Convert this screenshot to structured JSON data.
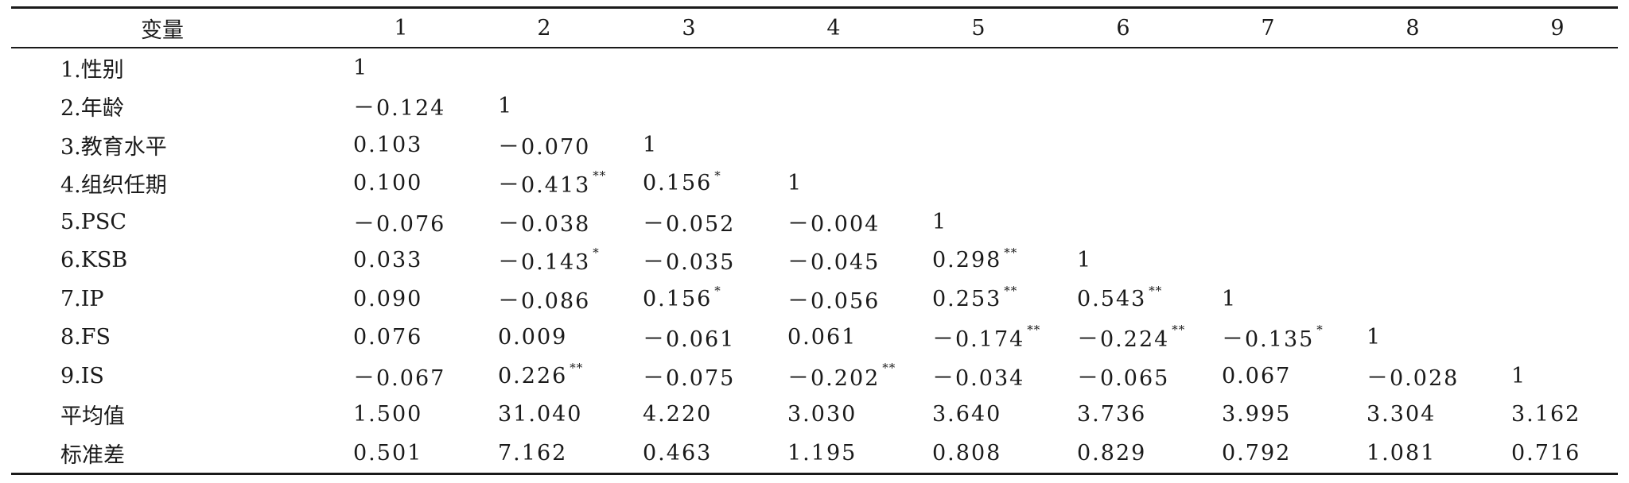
{
  "table": {
    "header": [
      "变量",
      "1",
      "2",
      "3",
      "4",
      "5",
      "6",
      "7",
      "8",
      "9"
    ],
    "rows": [
      {
        "label": "1.性别",
        "cells": [
          [
            "1",
            ""
          ],
          [
            "",
            ""
          ],
          [
            "",
            ""
          ],
          [
            "",
            ""
          ],
          [
            "",
            ""
          ],
          [
            "",
            ""
          ],
          [
            "",
            ""
          ],
          [
            "",
            ""
          ],
          [
            "",
            ""
          ]
        ]
      },
      {
        "label": "2.年龄",
        "cells": [
          [
            "－0.124",
            ""
          ],
          [
            "1",
            ""
          ],
          [
            "",
            ""
          ],
          [
            "",
            ""
          ],
          [
            "",
            ""
          ],
          [
            "",
            ""
          ],
          [
            "",
            ""
          ],
          [
            "",
            ""
          ],
          [
            "",
            ""
          ]
        ]
      },
      {
        "label": "3.教育水平",
        "cells": [
          [
            "0.103",
            ""
          ],
          [
            "－0.070",
            ""
          ],
          [
            "1",
            ""
          ],
          [
            "",
            ""
          ],
          [
            "",
            ""
          ],
          [
            "",
            ""
          ],
          [
            "",
            ""
          ],
          [
            "",
            ""
          ],
          [
            "",
            ""
          ]
        ]
      },
      {
        "label": "4.组织任期",
        "cells": [
          [
            "0.100",
            ""
          ],
          [
            "－0.413",
            "**"
          ],
          [
            "0.156",
            "*"
          ],
          [
            "1",
            ""
          ],
          [
            "",
            ""
          ],
          [
            "",
            ""
          ],
          [
            "",
            ""
          ],
          [
            "",
            ""
          ],
          [
            "",
            ""
          ]
        ]
      },
      {
        "label": "5.PSC",
        "cells": [
          [
            "－0.076",
            ""
          ],
          [
            "－0.038",
            ""
          ],
          [
            "－0.052",
            ""
          ],
          [
            "－0.004",
            ""
          ],
          [
            "1",
            ""
          ],
          [
            "",
            ""
          ],
          [
            "",
            ""
          ],
          [
            "",
            ""
          ],
          [
            "",
            ""
          ]
        ]
      },
      {
        "label": "6.KSB",
        "cells": [
          [
            "0.033",
            ""
          ],
          [
            "－0.143",
            "*"
          ],
          [
            "－0.035",
            ""
          ],
          [
            "－0.045",
            ""
          ],
          [
            "0.298",
            "**"
          ],
          [
            "1",
            ""
          ],
          [
            "",
            ""
          ],
          [
            "",
            ""
          ],
          [
            "",
            ""
          ]
        ]
      },
      {
        "label": "7.IP",
        "cells": [
          [
            "0.090",
            ""
          ],
          [
            "－0.086",
            ""
          ],
          [
            "0.156",
            "*"
          ],
          [
            "－0.056",
            ""
          ],
          [
            "0.253",
            "**"
          ],
          [
            "0.543",
            "**"
          ],
          [
            "1",
            ""
          ],
          [
            "",
            ""
          ],
          [
            "",
            ""
          ]
        ]
      },
      {
        "label": "8.FS",
        "cells": [
          [
            "0.076",
            ""
          ],
          [
            "0.009",
            ""
          ],
          [
            "－0.061",
            ""
          ],
          [
            "0.061",
            ""
          ],
          [
            "－0.174",
            "**"
          ],
          [
            "－0.224",
            "**"
          ],
          [
            "－0.135",
            "*"
          ],
          [
            "1",
            ""
          ],
          [
            "",
            ""
          ]
        ]
      },
      {
        "label": "9.IS",
        "cells": [
          [
            "－0.067",
            ""
          ],
          [
            "0.226",
            "**"
          ],
          [
            "－0.075",
            ""
          ],
          [
            "－0.202",
            "**"
          ],
          [
            "－0.034",
            ""
          ],
          [
            "－0.065",
            ""
          ],
          [
            "0.067",
            ""
          ],
          [
            "－0.028",
            ""
          ],
          [
            "1",
            ""
          ]
        ]
      },
      {
        "label": "平均值",
        "cells": [
          [
            "1.500",
            ""
          ],
          [
            "31.040",
            ""
          ],
          [
            "4.220",
            ""
          ],
          [
            "3.030",
            ""
          ],
          [
            "3.640",
            ""
          ],
          [
            "3.736",
            ""
          ],
          [
            "3.995",
            ""
          ],
          [
            "3.304",
            ""
          ],
          [
            "3.162",
            ""
          ]
        ]
      },
      {
        "label": "标准差",
        "cells": [
          [
            "0.501",
            ""
          ],
          [
            "7.162",
            ""
          ],
          [
            "0.463",
            ""
          ],
          [
            "1.195",
            ""
          ],
          [
            "0.808",
            ""
          ],
          [
            "0.829",
            ""
          ],
          [
            "0.792",
            ""
          ],
          [
            "1.081",
            ""
          ],
          [
            "0.716",
            ""
          ]
        ]
      }
    ]
  }
}
